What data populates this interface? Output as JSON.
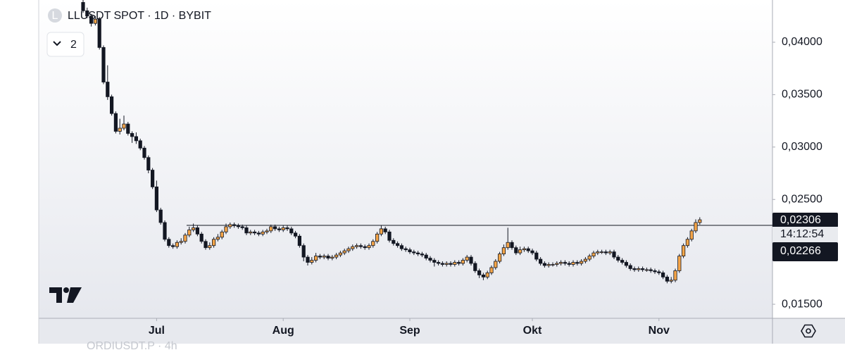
{
  "chart_data": {
    "type": "candlestick",
    "title": "LLUSDT SPOT · 1D · BYBIT",
    "symbol_icon": "L",
    "collapse_count": "2",
    "ylim": [
      0.01366,
      0.04403
    ],
    "yticks": [
      {
        "value": 0.015,
        "label": "0,01500"
      },
      {
        "value": 0.025,
        "label": "0,02500"
      },
      {
        "value": 0.03,
        "label": "0,03000"
      },
      {
        "value": 0.035,
        "label": "0,03500"
      },
      {
        "value": 0.04,
        "label": "0,04000"
      }
    ],
    "xticks": [
      {
        "value": 18,
        "label": "Jul"
      },
      {
        "value": 49,
        "label": "Aug"
      },
      {
        "value": 80,
        "label": "Sep"
      },
      {
        "value": 110,
        "label": "Okt"
      },
      {
        "value": 141,
        "label": "Nov"
      }
    ],
    "up_color": "#f5a548",
    "down_color": "#131722",
    "hline": 0.02253,
    "last_price_label": "0,02306",
    "countdown": "14:12:54",
    "line_price_label": "0,02266",
    "footer_text": "ORDIUSDT.P · 4h",
    "open": [
      0.0438,
      0.043,
      0.0425,
      0.0418,
      0.0422,
      0.0395,
      0.0362,
      0.0348,
      0.0332,
      0.0315,
      0.0318,
      0.0322,
      0.0313,
      0.031,
      0.0306,
      0.0299,
      0.029,
      0.0278,
      0.0262,
      0.024,
      0.0228,
      0.0212,
      0.0206,
      0.0205,
      0.0209,
      0.021,
      0.0216,
      0.0221,
      0.0223,
      0.0217,
      0.021,
      0.0204,
      0.0206,
      0.0212,
      0.0214,
      0.0219,
      0.0224,
      0.0226,
      0.0225,
      0.0224,
      0.0223,
      0.0218,
      0.0219,
      0.0218,
      0.0217,
      0.0219,
      0.022,
      0.0224,
      0.0222,
      0.0221,
      0.0223,
      0.0222,
      0.0218,
      0.0215,
      0.0206,
      0.0195,
      0.019,
      0.0192,
      0.0196,
      0.0195,
      0.0196,
      0.0194,
      0.0195,
      0.0197,
      0.0199,
      0.0201,
      0.0203,
      0.0205,
      0.0206,
      0.0205,
      0.0204,
      0.0206,
      0.021,
      0.0217,
      0.0222,
      0.0219,
      0.0211,
      0.0208,
      0.0206,
      0.0203,
      0.0202,
      0.02,
      0.0199,
      0.0198,
      0.0197,
      0.0194,
      0.0192,
      0.019,
      0.0189,
      0.0188,
      0.0189,
      0.0188,
      0.019,
      0.0189,
      0.0192,
      0.0195,
      0.0189,
      0.0182,
      0.0178,
      0.0176,
      0.018,
      0.0185,
      0.0191,
      0.0198,
      0.0204,
      0.0209,
      0.0204,
      0.0199,
      0.0202,
      0.0203,
      0.0201,
      0.0199,
      0.0193,
      0.0189,
      0.0187,
      0.0188,
      0.0188,
      0.0189,
      0.019,
      0.0189,
      0.0188,
      0.019,
      0.0189,
      0.0191,
      0.0193,
      0.0196,
      0.0199,
      0.02,
      0.02,
      0.0199,
      0.02,
      0.0195,
      0.0192,
      0.019,
      0.0187,
      0.0184,
      0.0183,
      0.0184,
      0.0183,
      0.0183,
      0.0182,
      0.0181,
      0.018,
      0.0176,
      0.0172,
      0.0173,
      0.0182,
      0.0196,
      0.0206,
      0.0212,
      0.022,
      0.0228
    ],
    "high": [
      0.0442,
      0.0433,
      0.0427,
      0.0425,
      0.0424,
      0.0397,
      0.0378,
      0.035,
      0.0334,
      0.0327,
      0.033,
      0.0324,
      0.0315,
      0.0314,
      0.0308,
      0.0301,
      0.0292,
      0.028,
      0.0268,
      0.0242,
      0.023,
      0.0214,
      0.0208,
      0.0211,
      0.0213,
      0.0218,
      0.0224,
      0.0227,
      0.0225,
      0.0219,
      0.0212,
      0.0209,
      0.0214,
      0.0217,
      0.0221,
      0.0227,
      0.0228,
      0.0228,
      0.0227,
      0.0226,
      0.0225,
      0.0221,
      0.0221,
      0.022,
      0.0221,
      0.0222,
      0.0226,
      0.0226,
      0.0224,
      0.0225,
      0.0225,
      0.0224,
      0.022,
      0.0217,
      0.0208,
      0.0197,
      0.0195,
      0.0199,
      0.0198,
      0.0198,
      0.0198,
      0.0197,
      0.0199,
      0.0201,
      0.0203,
      0.0205,
      0.0207,
      0.0208,
      0.0208,
      0.0207,
      0.0208,
      0.0212,
      0.0219,
      0.0225,
      0.0224,
      0.0221,
      0.0213,
      0.021,
      0.0208,
      0.0205,
      0.0204,
      0.0202,
      0.0201,
      0.02,
      0.0199,
      0.0196,
      0.0194,
      0.0192,
      0.0191,
      0.0191,
      0.0191,
      0.0192,
      0.0192,
      0.0194,
      0.0197,
      0.0197,
      0.0191,
      0.0184,
      0.018,
      0.0182,
      0.0187,
      0.0193,
      0.02,
      0.0207,
      0.0223,
      0.0211,
      0.0206,
      0.0205,
      0.0205,
      0.0205,
      0.0203,
      0.0201,
      0.0195,
      0.0191,
      0.019,
      0.019,
      0.0191,
      0.0192,
      0.0192,
      0.0191,
      0.0192,
      0.0192,
      0.0193,
      0.0195,
      0.0198,
      0.0201,
      0.0202,
      0.0202,
      0.0202,
      0.0202,
      0.0202,
      0.0197,
      0.0194,
      0.0192,
      0.0189,
      0.0186,
      0.0186,
      0.0186,
      0.0185,
      0.0185,
      0.0184,
      0.0183,
      0.0182,
      0.0178,
      0.0176,
      0.0184,
      0.0198,
      0.0208,
      0.0214,
      0.0222,
      0.0231,
      0.0233
    ],
    "low": [
      0.0428,
      0.0423,
      0.0415,
      0.0416,
      0.0393,
      0.036,
      0.0345,
      0.033,
      0.0313,
      0.0312,
      0.0316,
      0.0311,
      0.0304,
      0.0303,
      0.0297,
      0.0288,
      0.0275,
      0.026,
      0.0238,
      0.0226,
      0.021,
      0.0204,
      0.0203,
      0.0203,
      0.0207,
      0.0208,
      0.0214,
      0.0219,
      0.0215,
      0.0208,
      0.0202,
      0.0202,
      0.0204,
      0.021,
      0.0212,
      0.0217,
      0.0222,
      0.0223,
      0.0222,
      0.0221,
      0.0216,
      0.0216,
      0.0216,
      0.0215,
      0.0215,
      0.0217,
      0.0218,
      0.022,
      0.0219,
      0.0219,
      0.022,
      0.0216,
      0.0213,
      0.0204,
      0.0191,
      0.0187,
      0.0188,
      0.019,
      0.0193,
      0.0193,
      0.0192,
      0.0192,
      0.0193,
      0.0195,
      0.0197,
      0.0199,
      0.0201,
      0.0203,
      0.0203,
      0.0202,
      0.0202,
      0.0204,
      0.0208,
      0.0215,
      0.0217,
      0.0209,
      0.0206,
      0.0204,
      0.0201,
      0.02,
      0.0198,
      0.0197,
      0.0196,
      0.0195,
      0.0192,
      0.019,
      0.0186,
      0.0187,
      0.0186,
      0.0186,
      0.0186,
      0.0186,
      0.0187,
      0.0187,
      0.019,
      0.0187,
      0.018,
      0.0175,
      0.0173,
      0.0174,
      0.0178,
      0.0183,
      0.0189,
      0.0196,
      0.0202,
      0.0202,
      0.0197,
      0.0197,
      0.02,
      0.0199,
      0.0197,
      0.0191,
      0.0187,
      0.0185,
      0.0185,
      0.0186,
      0.0186,
      0.0187,
      0.0187,
      0.0186,
      0.0186,
      0.0187,
      0.0187,
      0.0189,
      0.0191,
      0.0194,
      0.0197,
      0.0198,
      0.0197,
      0.0197,
      0.0193,
      0.019,
      0.0188,
      0.0185,
      0.0182,
      0.0181,
      0.0181,
      0.0181,
      0.0181,
      0.018,
      0.0179,
      0.0178,
      0.0174,
      0.017,
      0.017,
      0.0171,
      0.018,
      0.0194,
      0.0204,
      0.021,
      0.0218,
      0.0226
    ],
    "close": [
      0.043,
      0.0425,
      0.0418,
      0.0422,
      0.0395,
      0.0362,
      0.0348,
      0.0332,
      0.0315,
      0.0318,
      0.0322,
      0.0313,
      0.031,
      0.0306,
      0.0299,
      0.029,
      0.0278,
      0.0262,
      0.024,
      0.0228,
      0.0212,
      0.0206,
      0.0205,
      0.0209,
      0.021,
      0.0216,
      0.0221,
      0.0223,
      0.0217,
      0.021,
      0.0204,
      0.0206,
      0.0212,
      0.0214,
      0.0219,
      0.0224,
      0.0226,
      0.0225,
      0.0224,
      0.0223,
      0.0218,
      0.0219,
      0.0218,
      0.0217,
      0.0219,
      0.022,
      0.0224,
      0.0222,
      0.0221,
      0.0223,
      0.0222,
      0.0218,
      0.0215,
      0.0206,
      0.0195,
      0.019,
      0.0192,
      0.0196,
      0.0195,
      0.0196,
      0.0194,
      0.0195,
      0.0197,
      0.0199,
      0.0201,
      0.0203,
      0.0205,
      0.0206,
      0.0205,
      0.0204,
      0.0206,
      0.021,
      0.0217,
      0.0222,
      0.0219,
      0.0211,
      0.0208,
      0.0206,
      0.0203,
      0.0202,
      0.02,
      0.0199,
      0.0198,
      0.0197,
      0.0194,
      0.0192,
      0.019,
      0.0189,
      0.0188,
      0.0189,
      0.0188,
      0.019,
      0.0189,
      0.0192,
      0.0195,
      0.0189,
      0.0182,
      0.0178,
      0.0176,
      0.018,
      0.0185,
      0.0191,
      0.0198,
      0.0204,
      0.0209,
      0.0204,
      0.0199,
      0.0202,
      0.0203,
      0.0201,
      0.0199,
      0.0193,
      0.0189,
      0.0187,
      0.0188,
      0.0188,
      0.0189,
      0.019,
      0.0189,
      0.0188,
      0.019,
      0.0189,
      0.0191,
      0.0193,
      0.0196,
      0.0199,
      0.02,
      0.02,
      0.0199,
      0.02,
      0.0195,
      0.0192,
      0.019,
      0.0187,
      0.0184,
      0.0183,
      0.0184,
      0.0183,
      0.0183,
      0.0182,
      0.0181,
      0.018,
      0.0176,
      0.0172,
      0.0173,
      0.0182,
      0.0196,
      0.0206,
      0.0212,
      0.022,
      0.0228,
      0.02306
    ]
  }
}
